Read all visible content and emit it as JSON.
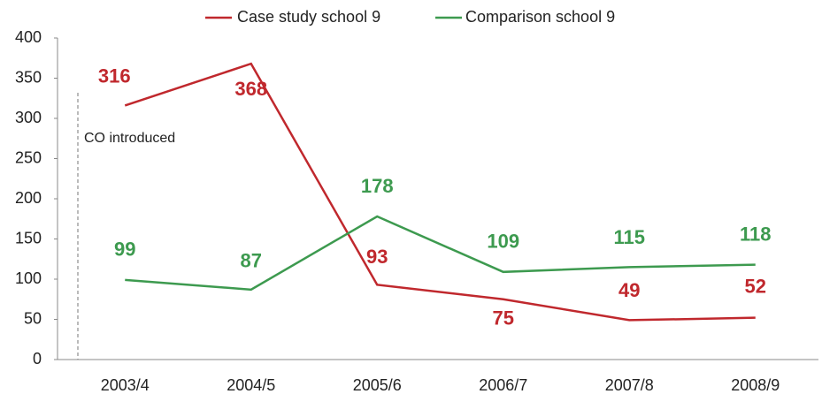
{
  "chart_data": {
    "type": "line",
    "categories": [
      "2003/4",
      "2004/5",
      "2005/6",
      "2006/7",
      "2007/8",
      "2008/9"
    ],
    "series": [
      {
        "name": "Case study school 9",
        "color": "#c0282d",
        "values": [
          316,
          368,
          93,
          75,
          49,
          52
        ]
      },
      {
        "name": "Comparison school 9",
        "color": "#3d9a4f",
        "values": [
          99,
          87,
          178,
          109,
          115,
          118
        ]
      }
    ],
    "ylim": [
      0,
      400
    ],
    "yticks": [
      0,
      50,
      100,
      150,
      200,
      250,
      300,
      350,
      400
    ],
    "annotation": "CO introduced",
    "legend": "top"
  }
}
